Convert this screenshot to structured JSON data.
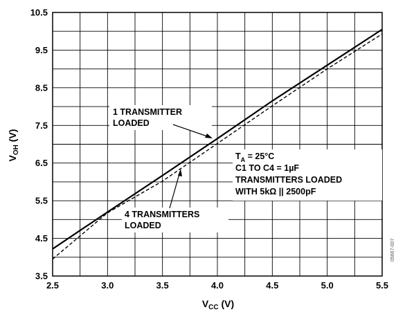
{
  "chart_data": {
    "type": "line",
    "xlabel": {
      "main": "V",
      "sub": "CC",
      "suffix": " (V)"
    },
    "ylabel": {
      "main": "V",
      "sub": "OH",
      "suffix": " (V)"
    },
    "xlim": [
      2.5,
      5.5
    ],
    "ylim": [
      3.5,
      10.5
    ],
    "x_ticks": [
      "2.5",
      "3.0",
      "3.5",
      "4.0",
      "4.5",
      "5.0",
      "5.5"
    ],
    "y_ticks": [
      "3.5",
      "4.5",
      "5.5",
      "6.5",
      "7.5",
      "8.5",
      "9.5",
      "10.5"
    ],
    "grid": true,
    "series": [
      {
        "name": "1 TRANSMITTER LOADED",
        "style": "solid",
        "x": [
          2.5,
          3.0,
          3.5,
          4.0,
          4.5,
          5.0,
          5.5
        ],
        "y": [
          4.22,
          5.2,
          6.17,
          7.15,
          8.15,
          9.1,
          10.05
        ]
      },
      {
        "name": "4 TRANSMITTERS LOADED",
        "style": "dashed",
        "x": [
          2.5,
          3.0,
          3.5,
          4.0,
          4.5,
          5.0,
          5.5
        ],
        "y": [
          3.95,
          5.18,
          6.02,
          7.02,
          8.02,
          9.0,
          9.93
        ]
      }
    ],
    "annotations": {
      "series1_label": [
        "1 TRANSMITTER",
        "LOADED"
      ],
      "series2_label": [
        "4 TRANSMITTERS",
        "LOADED"
      ],
      "conditions": {
        "ta_main": "T",
        "ta_sub": "A",
        "ta_rest": " = 25°C",
        "line2": "C1 TO C4 = 1µF",
        "line3": "TRANSMITTERS LOADED",
        "line4": "WITH 5kΩ || 2500pF"
      }
    },
    "figure_id": "05667-007"
  },
  "colors": {
    "line": "#000000",
    "grid": "#000000",
    "background": "#ffffff"
  }
}
